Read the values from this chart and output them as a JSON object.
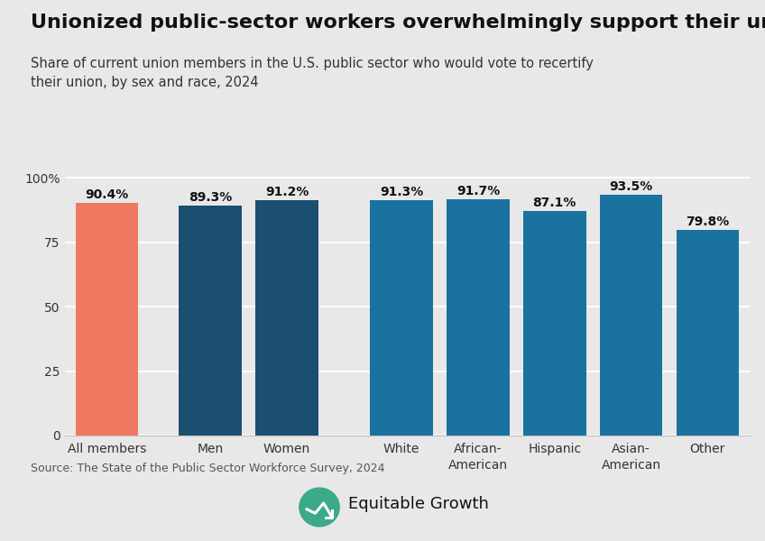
{
  "title": "Unionized public-sector workers overwhelmingly support their unions",
  "subtitle": "Share of current union members in the U.S. public sector who would vote to recertify\ntheir union, by sex and race, 2024",
  "categories": [
    "All members",
    "Men",
    "Women",
    "White",
    "African-\nAmerican",
    "Hispanic",
    "Asian-\nAmerican",
    "Other"
  ],
  "values": [
    90.4,
    89.3,
    91.2,
    91.3,
    91.7,
    87.1,
    93.5,
    79.8
  ],
  "bar_colors": [
    "#F07860",
    "#1B4F72",
    "#1B4F72",
    "#1A72A0",
    "#1A72A0",
    "#1A72A0",
    "#1A72A0",
    "#1A72A0"
  ],
  "labels": [
    "90.4%",
    "89.3%",
    "91.2%",
    "91.3%",
    "91.7%",
    "87.1%",
    "93.5%",
    "79.8%"
  ],
  "source": "Source: The State of the Public Sector Workforce Survey, 2024",
  "background_color": "#E8E8E8",
  "plot_bg_color": "#E8E8E8",
  "ylim": [
    0,
    105
  ],
  "yticks": [
    0,
    25,
    50,
    75,
    100
  ],
  "ytick_labels": [
    "0",
    "25",
    "50",
    "75",
    "100%"
  ],
  "positions": [
    0,
    1.35,
    2.35,
    3.85,
    4.85,
    5.85,
    6.85,
    7.85
  ],
  "bar_width": 0.82,
  "xlim": [
    -0.55,
    8.4
  ],
  "title_fontsize": 16,
  "subtitle_fontsize": 10.5,
  "label_fontsize": 10,
  "tick_fontsize": 10,
  "source_fontsize": 9,
  "logo_text": "Equitable Growth",
  "logo_fontsize": 13,
  "logo_color": "#3aaa8a"
}
